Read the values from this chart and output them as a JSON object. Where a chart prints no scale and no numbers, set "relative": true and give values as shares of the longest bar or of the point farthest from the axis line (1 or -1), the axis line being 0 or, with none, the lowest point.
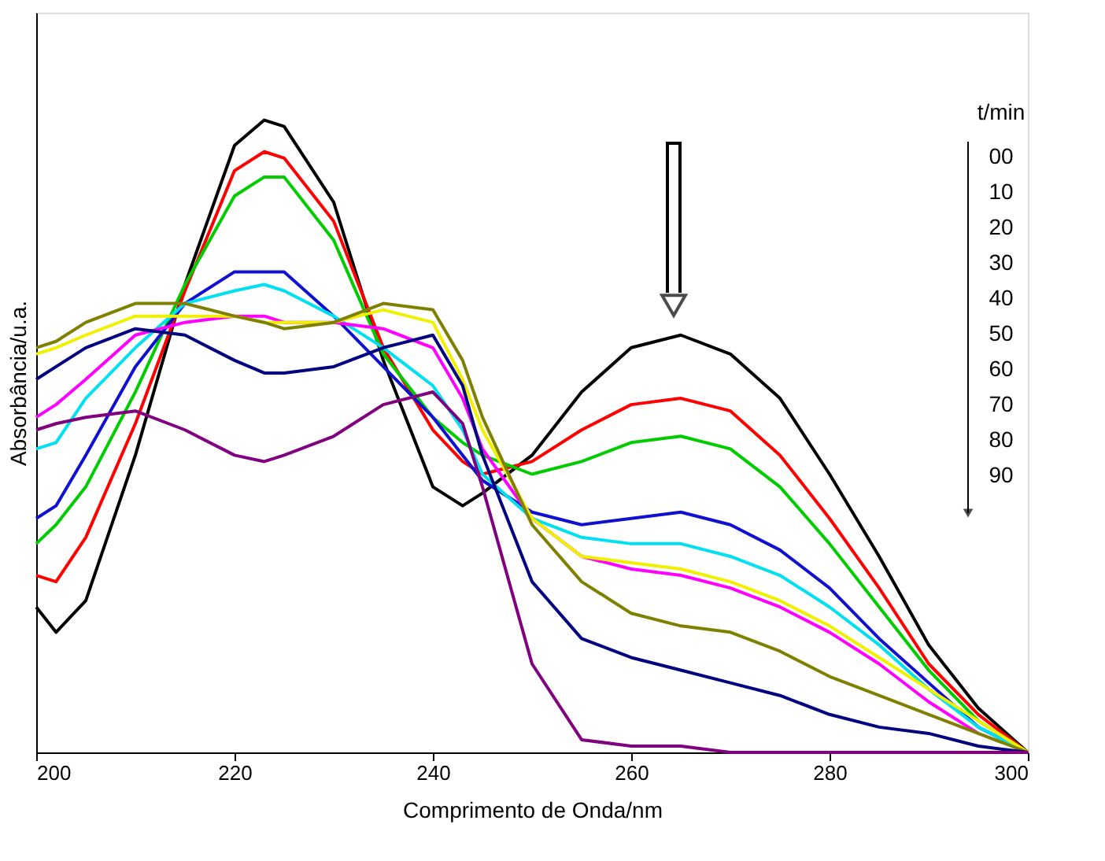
{
  "chart_data": {
    "type": "line",
    "relative": true,
    "xlabel": "Comprimento de Onda/nm",
    "ylabel": "Absorbância/u.a.",
    "x": [
      200,
      202,
      205,
      210,
      215,
      220,
      223,
      225,
      230,
      235,
      240,
      243,
      245,
      250,
      255,
      260,
      265,
      270,
      275,
      280,
      285,
      290,
      295,
      300
    ],
    "xlim": [
      200,
      300
    ],
    "xticks": [
      200,
      220,
      240,
      260,
      280,
      300
    ],
    "grid": false,
    "legend": false,
    "marker": "none",
    "line_style": "solid",
    "annotations": [
      "t/min",
      "00",
      "10",
      "20",
      "30",
      "40",
      "50",
      "60",
      "70",
      "80",
      "90"
    ],
    "series": [
      {
        "color": "#000000",
        "values": [
          0.23,
          0.19,
          0.24,
          0.47,
          0.74,
          0.96,
          1.0,
          0.99,
          0.87,
          0.62,
          0.42,
          0.39,
          0.41,
          0.47,
          0.57,
          0.64,
          0.66,
          0.63,
          0.56,
          0.44,
          0.31,
          0.17,
          0.07,
          0
        ]
      },
      {
        "color": "#ff0000",
        "values": [
          0.28,
          0.27,
          0.34,
          0.52,
          0.73,
          0.92,
          0.95,
          0.94,
          0.84,
          0.64,
          0.51,
          0.46,
          0.44,
          0.46,
          0.51,
          0.55,
          0.56,
          0.54,
          0.47,
          0.37,
          0.26,
          0.14,
          0.06,
          0
        ]
      },
      {
        "color": "#00cc00",
        "values": [
          0.33,
          0.36,
          0.42,
          0.57,
          0.74,
          0.88,
          0.91,
          0.91,
          0.81,
          0.63,
          0.53,
          0.49,
          0.47,
          0.44,
          0.46,
          0.49,
          0.5,
          0.48,
          0.42,
          0.33,
          0.23,
          0.13,
          0.05,
          0
        ]
      },
      {
        "color": "#1010d0",
        "values": [
          0.37,
          0.39,
          0.47,
          0.61,
          0.71,
          0.76,
          0.76,
          0.76,
          0.69,
          0.61,
          0.53,
          0.47,
          0.43,
          0.38,
          0.36,
          0.37,
          0.38,
          0.36,
          0.32,
          0.26,
          0.18,
          0.11,
          0.04,
          0
        ]
      },
      {
        "color": "#00e0f0",
        "values": [
          0.48,
          0.49,
          0.56,
          0.64,
          0.71,
          0.73,
          0.74,
          0.73,
          0.69,
          0.64,
          0.58,
          0.51,
          0.44,
          0.37,
          0.34,
          0.33,
          0.33,
          0.31,
          0.28,
          0.23,
          0.17,
          0.1,
          0.04,
          0
        ]
      },
      {
        "color": "#ff00ff",
        "values": [
          0.53,
          0.55,
          0.59,
          0.66,
          0.68,
          0.69,
          0.69,
          0.68,
          0.68,
          0.67,
          0.64,
          0.56,
          0.48,
          0.37,
          0.31,
          0.29,
          0.28,
          0.26,
          0.23,
          0.19,
          0.14,
          0.08,
          0.03,
          null
        ]
      },
      {
        "color": "#f0f000",
        "values": [
          0.63,
          0.64,
          0.66,
          0.69,
          0.69,
          0.69,
          0.68,
          0.68,
          0.68,
          0.7,
          0.68,
          0.59,
          0.51,
          0.37,
          0.31,
          0.3,
          0.29,
          0.27,
          0.24,
          0.2,
          0.15,
          0.1,
          0.05,
          0
        ]
      },
      {
        "color": "#808000",
        "values": [
          0.64,
          0.65,
          0.68,
          0.71,
          0.71,
          0.69,
          0.68,
          0.67,
          0.68,
          0.71,
          0.7,
          0.62,
          0.53,
          0.36,
          0.27,
          0.22,
          0.2,
          0.19,
          0.16,
          0.12,
          0.09,
          0.06,
          0.03,
          0
        ]
      },
      {
        "color": "#000080",
        "values": [
          0.59,
          0.61,
          0.64,
          0.67,
          0.66,
          0.62,
          0.6,
          0.6,
          0.61,
          0.64,
          0.66,
          0.58,
          0.47,
          0.27,
          0.18,
          0.15,
          0.13,
          0.11,
          0.09,
          0.06,
          0.04,
          0.03,
          0.01,
          0
        ]
      },
      {
        "color": "#800080",
        "values": [
          0.51,
          0.52,
          0.53,
          0.54,
          0.51,
          0.47,
          0.46,
          0.47,
          0.5,
          0.55,
          0.57,
          0.52,
          0.42,
          0.14,
          0.02,
          0.01,
          0.01,
          0,
          0,
          0,
          0,
          0,
          0,
          0
        ]
      }
    ]
  }
}
